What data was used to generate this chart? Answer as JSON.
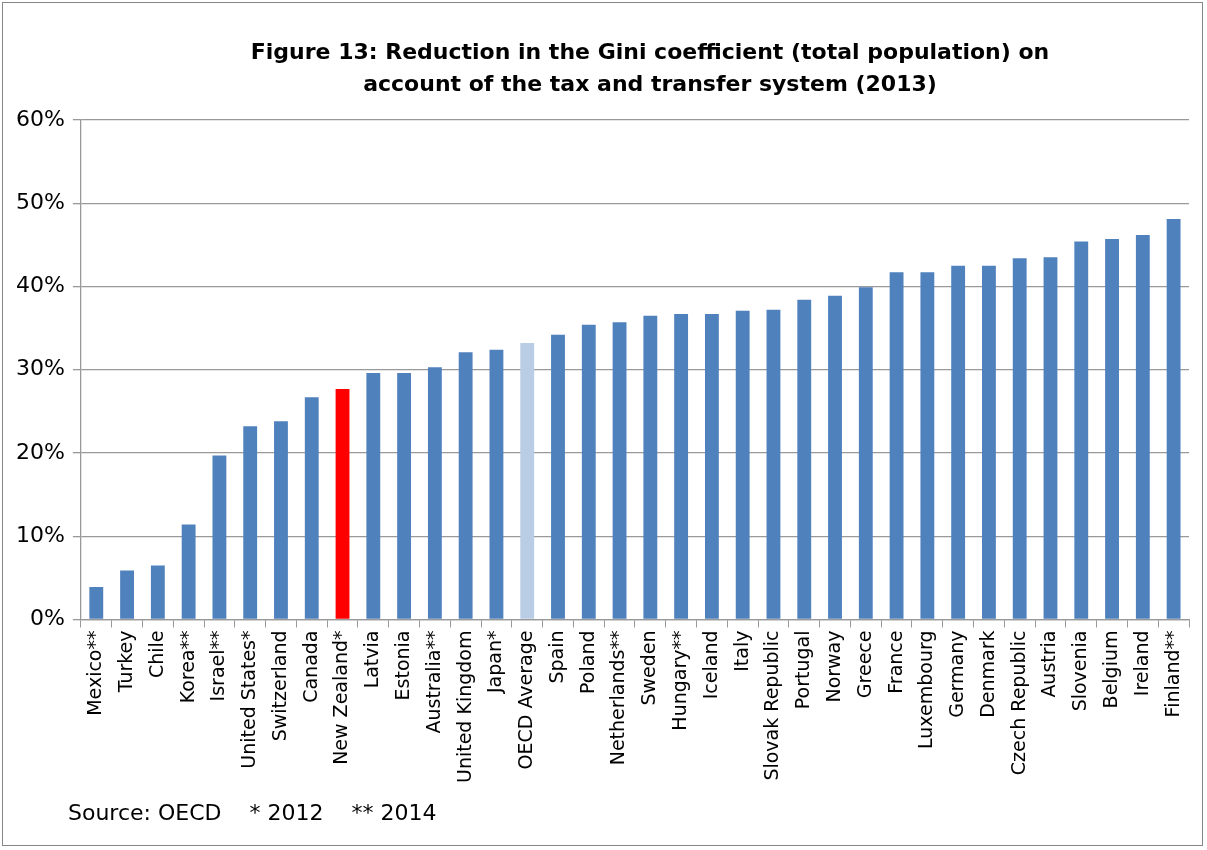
{
  "chart_data": {
    "type": "bar",
    "title": "Figure 13: Reduction in the Gini coefficient (total population) on account of the tax and transfer system (2013)",
    "categories": [
      "Mexico**",
      "Turkey",
      "Chile",
      "Korea**",
      "Israel**",
      "United States*",
      "Switzerland",
      "Canada",
      "New Zealand*",
      "Latvia",
      "Estonia",
      "Australia**",
      "United Kingdom",
      "Japan*",
      "OECD Average",
      "Spain",
      "Poland",
      "Netherlands**",
      "Sweden",
      "Hungary**",
      "Iceland",
      "Italy",
      "Slovak Republic",
      "Portugal",
      "Norway",
      "Greece",
      "France",
      "Luxembourg",
      "Germany",
      "Denmark",
      "Czech Republic",
      "Austria",
      "Slovenia",
      "Belgium",
      "Ireland",
      "Finland**"
    ],
    "values": [
      3.9,
      5.9,
      6.5,
      11.4,
      19.7,
      23.2,
      23.8,
      26.7,
      27.7,
      29.6,
      29.6,
      30.3,
      32.1,
      32.4,
      33.2,
      34.2,
      35.4,
      35.7,
      36.5,
      36.7,
      36.7,
      37.1,
      37.2,
      38.4,
      38.9,
      39.9,
      41.7,
      41.7,
      42.5,
      42.5,
      43.4,
      43.5,
      45.4,
      45.7,
      46.2,
      48.1
    ],
    "colors": [
      "#4f81bd",
      "#4f81bd",
      "#4f81bd",
      "#4f81bd",
      "#4f81bd",
      "#4f81bd",
      "#4f81bd",
      "#4f81bd",
      "#ff0000",
      "#4f81bd",
      "#4f81bd",
      "#4f81bd",
      "#4f81bd",
      "#4f81bd",
      "#b9cde5",
      "#4f81bd",
      "#4f81bd",
      "#4f81bd",
      "#4f81bd",
      "#4f81bd",
      "#4f81bd",
      "#4f81bd",
      "#4f81bd",
      "#4f81bd",
      "#4f81bd",
      "#4f81bd",
      "#4f81bd",
      "#4f81bd",
      "#4f81bd",
      "#4f81bd",
      "#4f81bd",
      "#4f81bd",
      "#4f81bd",
      "#4f81bd",
      "#4f81bd",
      "#4f81bd"
    ],
    "ylim": [
      0,
      60
    ],
    "yticks": [
      {
        "value": 0,
        "label": "0%"
      },
      {
        "value": 10,
        "label": "10%"
      },
      {
        "value": 20,
        "label": "20%"
      },
      {
        "value": 30,
        "label": "30%"
      },
      {
        "value": 40,
        "label": "40%"
      },
      {
        "value": 50,
        "label": "50%"
      },
      {
        "value": 60,
        "label": "60%"
      }
    ],
    "grid": "y",
    "legend": false,
    "annotations": [
      "Source: OECD    * 2012    ** 2014"
    ]
  }
}
